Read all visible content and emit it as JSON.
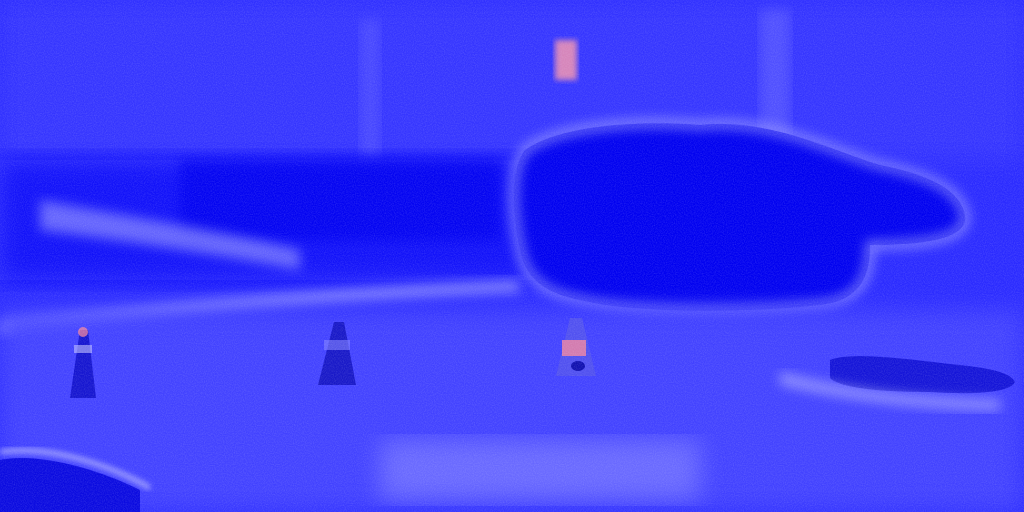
{
  "image": {
    "kind": "false-color heat map visualization of an outdoor scene",
    "colors": {
      "base": "#2a2aff",
      "deep": "#0000f0",
      "light": "#7a7aff",
      "pale": "#b8b8ff",
      "hot": "#ff7a8a",
      "white_noise": "#e8e8ff"
    },
    "objects": [
      "building-facade",
      "dark-blob-vehicle",
      "traffic-cone-left",
      "traffic-cone-center-left",
      "traffic-cone-center",
      "parked-car-right",
      "curb-bottom-left",
      "road-surface"
    ]
  }
}
